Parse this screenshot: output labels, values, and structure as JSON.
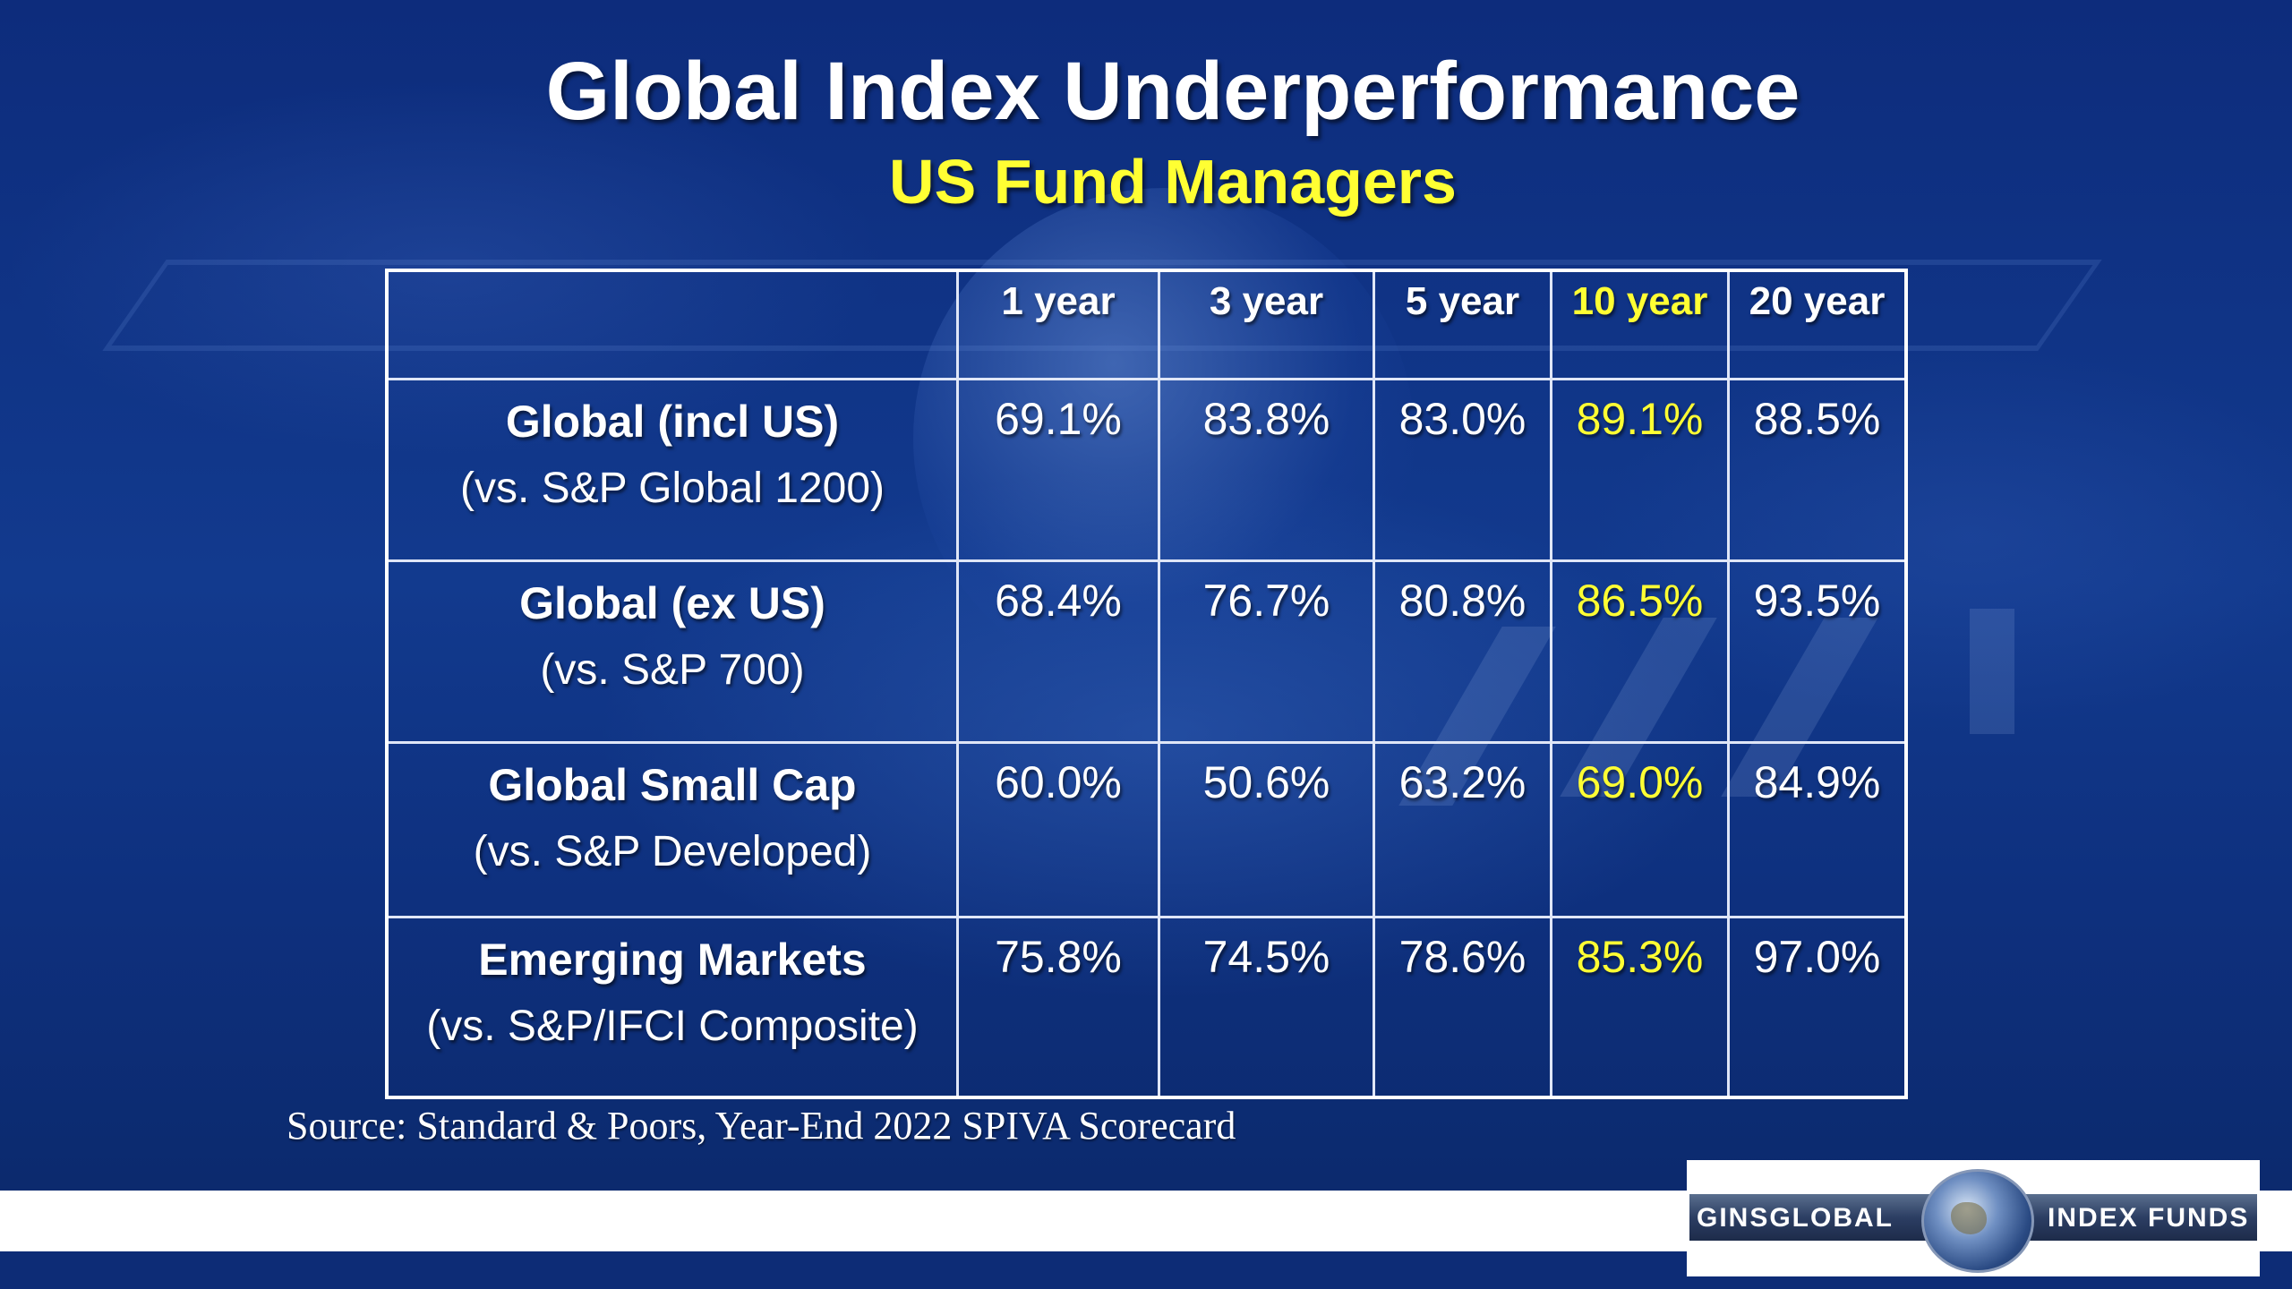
{
  "slide": {
    "title": "Global Index Underperformance",
    "subtitle": "US Fund Managers",
    "source": "Source: Standard & Poors, Year-End 2022 SPIVA Scorecard"
  },
  "table": {
    "headers": [
      "",
      "1 year",
      "3 year",
      "5 year",
      "10 year",
      "20 year"
    ],
    "highlight_column": "10 year",
    "highlight_color": "#ffff33",
    "rows": [
      {
        "name": "Global (incl US)",
        "benchmark": "(vs. S&P Global 1200)",
        "values": [
          "69.1%",
          "83.8%",
          "83.0%",
          "89.1%",
          "88.5%"
        ]
      },
      {
        "name": "Global (ex US)",
        "benchmark": "(vs. S&P 700)",
        "values": [
          "68.4%",
          "76.7%",
          "80.8%",
          "86.5%",
          "93.5%"
        ]
      },
      {
        "name": "Global Small Cap",
        "benchmark": "(vs. S&P Developed)",
        "values": [
          "60.0%",
          "50.6%",
          "63.2%",
          "69.0%",
          "84.9%"
        ]
      },
      {
        "name": "Emerging Markets",
        "benchmark": "(vs. S&P/IFCI Composite)",
        "values": [
          "75.8%",
          "74.5%",
          "78.6%",
          "85.3%",
          "97.0%"
        ]
      }
    ]
  },
  "logo": {
    "left_text": "GINSGLOBAL",
    "right_text": "INDEX FUNDS"
  },
  "colors": {
    "background": "#0c2a78",
    "title": "#ffffff",
    "subtitle": "#ffff33"
  }
}
